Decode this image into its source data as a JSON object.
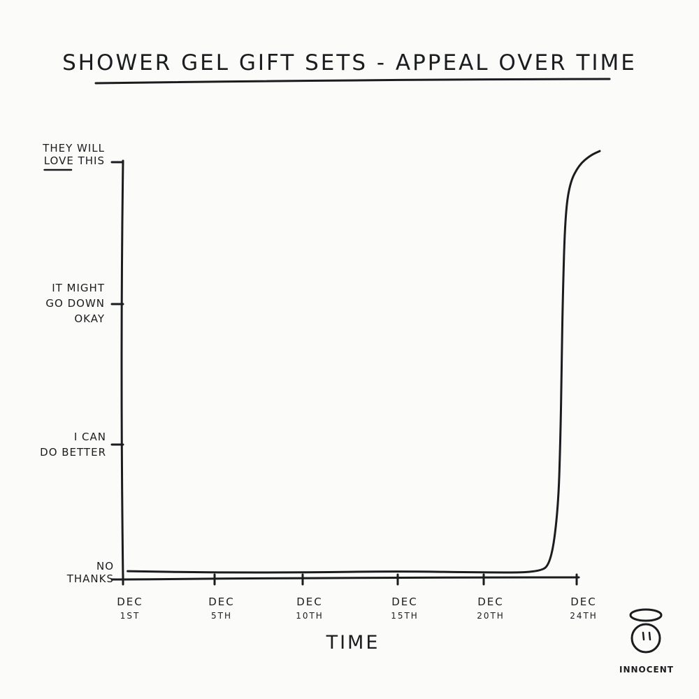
{
  "chart_data": {
    "type": "line",
    "title": "SHOWER GEL GIFT SETS - APPEAL OVER TIME",
    "xlabel": "TIME",
    "ylabel": "",
    "x_unit": "day of December",
    "xlim": [
      1,
      25
    ],
    "ylim": [
      0,
      3
    ],
    "x_ticks": [
      {
        "value": 1,
        "line1": "DEC",
        "line2": "1ST"
      },
      {
        "value": 5,
        "line1": "DEC",
        "line2": "5TH"
      },
      {
        "value": 10,
        "line1": "DEC",
        "line2": "10TH"
      },
      {
        "value": 15,
        "line1": "DEC",
        "line2": "15TH"
      },
      {
        "value": 20,
        "line1": "DEC",
        "line2": "20TH"
      },
      {
        "value": 24,
        "line1": "DEC",
        "line2": "24TH"
      }
    ],
    "y_ticks": [
      {
        "value": 0,
        "lines": [
          "NO",
          "THANKS"
        ]
      },
      {
        "value": 1,
        "lines": [
          "I CAN",
          "DO BETTER"
        ]
      },
      {
        "value": 2,
        "lines": [
          "IT MIGHT",
          "GO DOWN",
          "OKAY"
        ]
      },
      {
        "value": 3,
        "lines": [
          "THEY WILL",
          "LOVE THIS"
        ]
      }
    ],
    "y_tick_emphasis": "LOVE",
    "series": [
      {
        "name": "Appeal",
        "x": [
          1.2,
          5,
          10,
          15,
          20,
          22.4,
          22.9,
          23.2,
          23.3,
          23.35,
          23.4,
          23.5,
          23.7,
          24.1,
          24.6,
          25
        ],
        "y": [
          0.06,
          0.05,
          0.05,
          0.06,
          0.05,
          0.05,
          0.12,
          0.5,
          1.0,
          1.5,
          2.0,
          2.6,
          2.85,
          2.98,
          3.05,
          3.08
        ]
      }
    ],
    "grid": false,
    "legend": "none"
  },
  "brand": {
    "name": "INNOCENT",
    "logo_icon": "innocent-halo-face-icon"
  },
  "colors": {
    "ink": "#1a1c1f",
    "paper": "#fbfbf9"
  }
}
